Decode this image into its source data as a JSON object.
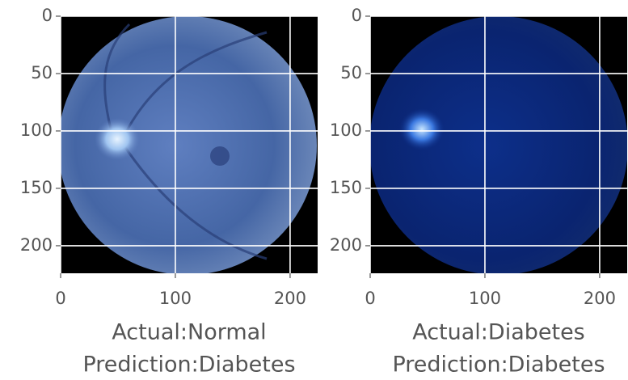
{
  "chart_data": [
    {
      "type": "image",
      "xlim": [
        0,
        224
      ],
      "ylim": [
        224,
        0
      ],
      "xticks": [
        0,
        100,
        200
      ],
      "yticks": [
        0,
        50,
        100,
        150,
        200
      ],
      "grid": true,
      "xlabel": [
        "Actual:Normal",
        "Prediction:Diabetes"
      ]
    },
    {
      "type": "image",
      "xlim": [
        0,
        224
      ],
      "ylim": [
        224,
        0
      ],
      "xticks": [
        0,
        100,
        200
      ],
      "yticks": [
        0,
        50,
        100,
        150,
        200
      ],
      "grid": true,
      "xlabel": [
        "Actual:Diabetes",
        "Prediction:Diabetes"
      ]
    }
  ]
}
